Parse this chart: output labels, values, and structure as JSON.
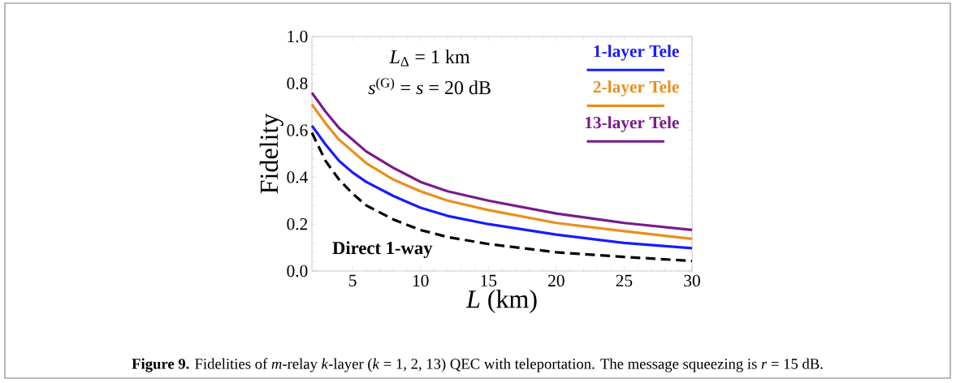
{
  "chart_data": {
    "type": "line",
    "xlabel": "*L* (km)",
    "ylabel": "Fidelity",
    "x": [
      2,
      3,
      4,
      5,
      6,
      8,
      10,
      12,
      15,
      20,
      25,
      30
    ],
    "series": [
      {
        "name": "1-layer Tele",
        "color": "#1a1aff",
        "values": [
          0.62,
          0.54,
          0.47,
          0.42,
          0.38,
          0.32,
          0.27,
          0.235,
          0.2,
          0.155,
          0.12,
          0.097
        ]
      },
      {
        "name": "2-layer Tele",
        "color": "#e8901a",
        "values": [
          0.71,
          0.63,
          0.56,
          0.51,
          0.46,
          0.39,
          0.34,
          0.3,
          0.26,
          0.205,
          0.17,
          0.137
        ]
      },
      {
        "name": "13-layer Tele",
        "color": "#7a1a8c",
        "values": [
          0.76,
          0.68,
          0.61,
          0.56,
          0.51,
          0.44,
          0.38,
          0.34,
          0.3,
          0.245,
          0.205,
          0.175
        ]
      },
      {
        "name": "Direct 1-way",
        "color": "#000000",
        "line_style": "dashed",
        "values": [
          0.59,
          0.47,
          0.39,
          0.33,
          0.28,
          0.22,
          0.175,
          0.145,
          0.115,
          0.08,
          0.06,
          0.043
        ]
      }
    ],
    "xlim": [
      2,
      30
    ],
    "ylim": [
      0,
      1
    ],
    "xticks": [
      5,
      10,
      15,
      20,
      25,
      30
    ],
    "yticks": [
      {
        "value": 0,
        "label": "0.0"
      },
      0.2,
      0.4,
      0.6,
      0.8,
      {
        "value": 1,
        "label": "1.0"
      }
    ],
    "grid": false,
    "legend": "top right",
    "line_style": "solid",
    "annotations": [
      "*L*$_{Δ}$ = 1 km",
      "*s*$^{(G)}$ = *s* = 20 dB",
      "**Figure 9.** Fidelities of *m*-relay *k*-layer (*k* = 1, 2, 13) QEC with teleportation. The message squeezing is *r* = 15 dB."
    ]
  }
}
